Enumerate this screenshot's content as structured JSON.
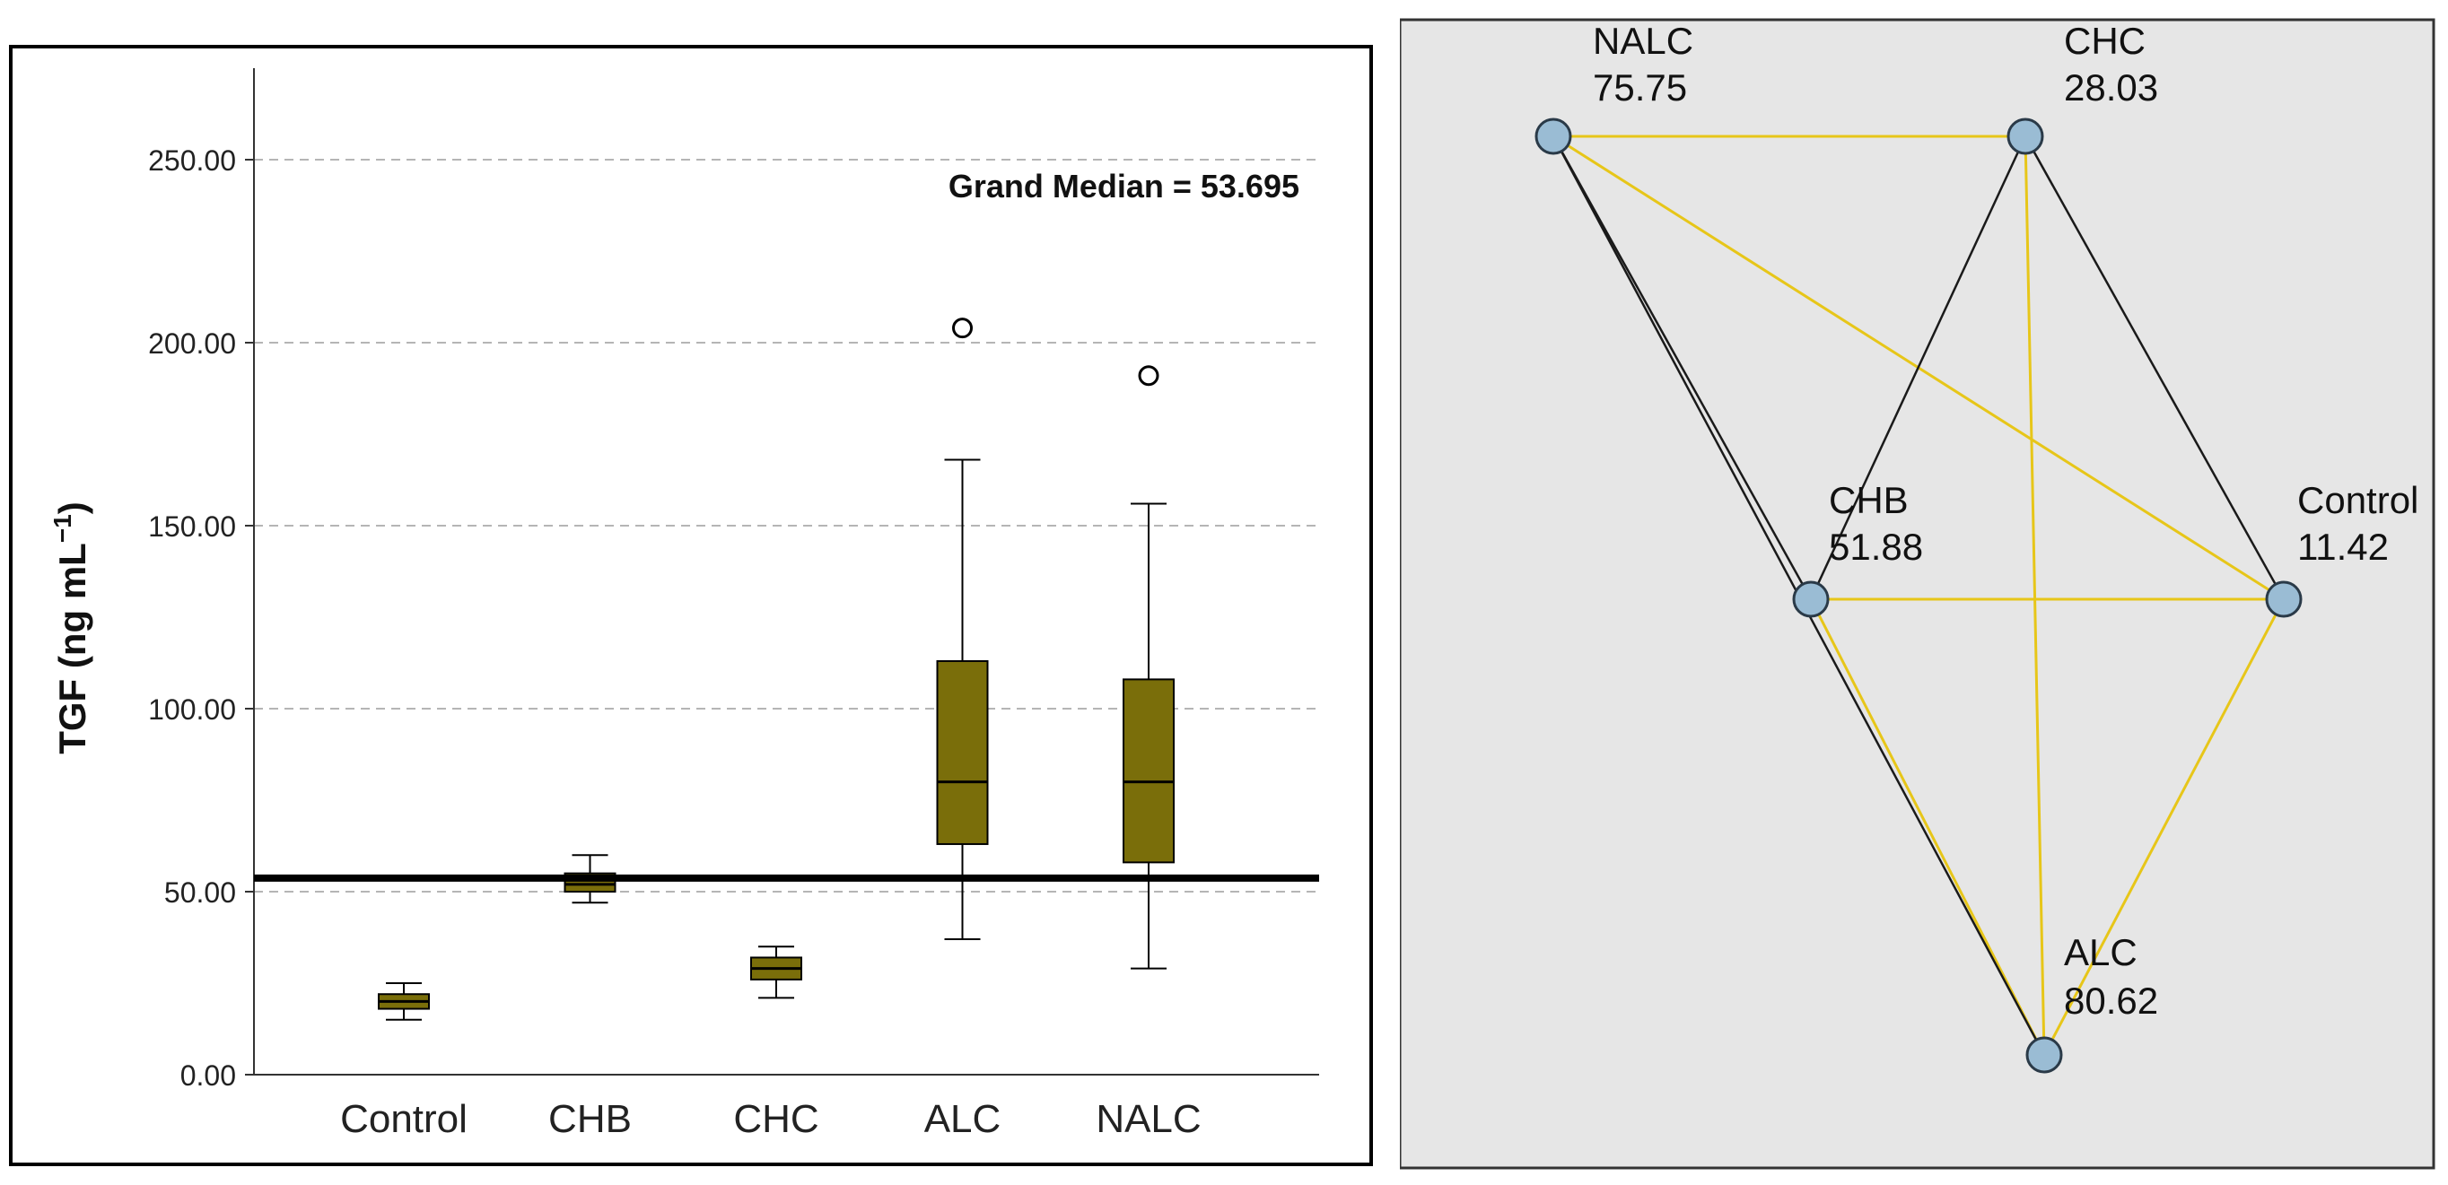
{
  "chart_data": [
    {
      "type": "boxplot",
      "ylabel_main": "TGF (ng mL",
      "ylabel_sup": "−1",
      "ylabel_close": ")",
      "xlabel": "",
      "ylim": [
        0,
        275
      ],
      "yticks": [
        {
          "value": 0,
          "label": "0.00"
        },
        {
          "value": 50,
          "label": "50.00"
        },
        {
          "value": 100,
          "label": "100.00"
        },
        {
          "value": 150,
          "label": "150.00"
        },
        {
          "value": 200,
          "label": "200.00"
        },
        {
          "value": 250,
          "label": "250.00"
        }
      ],
      "grid": "horizontal-dashed",
      "categories": [
        "Control",
        "CHB",
        "CHC",
        "ALC",
        "NALC"
      ],
      "boxes": [
        {
          "category": "Control",
          "whisker_low": 15,
          "q1": 18,
          "median": 20,
          "q3": 22,
          "whisker_high": 25,
          "outliers": []
        },
        {
          "category": "CHB",
          "whisker_low": 47,
          "q1": 50,
          "median": 52,
          "q3": 55,
          "whisker_high": 60,
          "outliers": []
        },
        {
          "category": "CHC",
          "whisker_low": 21,
          "q1": 26,
          "median": 29,
          "q3": 32,
          "whisker_high": 35,
          "outliers": []
        },
        {
          "category": "ALC",
          "whisker_low": 37,
          "q1": 63,
          "median": 80,
          "q3": 113,
          "whisker_high": 168,
          "outliers": [
            204
          ]
        },
        {
          "category": "NALC",
          "whisker_low": 29,
          "q1": 58,
          "median": 80,
          "q3": 108,
          "whisker_high": 156,
          "outliers": [
            191
          ]
        }
      ],
      "reference_line": {
        "value": 53.695,
        "label": "Grand Median = 53.695"
      },
      "box_color": "#7a6e0a",
      "line_color": "#000000"
    },
    {
      "type": "network",
      "background": "#e6e6e6",
      "node_color": "#9abcd4",
      "edge_colors": {
        "yellow": "#e7c619",
        "black": "#1a1a1a"
      },
      "nodes": [
        {
          "id": "NALC",
          "name": "NALC",
          "value": "75.75"
        },
        {
          "id": "CHC",
          "name": "CHC",
          "value": "28.03"
        },
        {
          "id": "CHB",
          "name": "CHB",
          "value": "51.88"
        },
        {
          "id": "Control",
          "name": "Control",
          "value": "11.42"
        },
        {
          "id": "ALC",
          "name": "ALC",
          "value": "80.62"
        }
      ],
      "edges": [
        {
          "from": "NALC",
          "to": "CHC",
          "color": "yellow"
        },
        {
          "from": "NALC",
          "to": "Control",
          "color": "yellow"
        },
        {
          "from": "NALC",
          "to": "CHB",
          "color": "black"
        },
        {
          "from": "NALC",
          "to": "ALC",
          "color": "black"
        },
        {
          "from": "CHC",
          "to": "CHB",
          "color": "black"
        },
        {
          "from": "CHC",
          "to": "Control",
          "color": "black"
        },
        {
          "from": "CHC",
          "to": "ALC",
          "color": "yellow"
        },
        {
          "from": "CHB",
          "to": "Control",
          "color": "yellow"
        },
        {
          "from": "CHB",
          "to": "ALC",
          "color": "yellow"
        },
        {
          "from": "Control",
          "to": "ALC",
          "color": "yellow"
        }
      ]
    }
  ]
}
